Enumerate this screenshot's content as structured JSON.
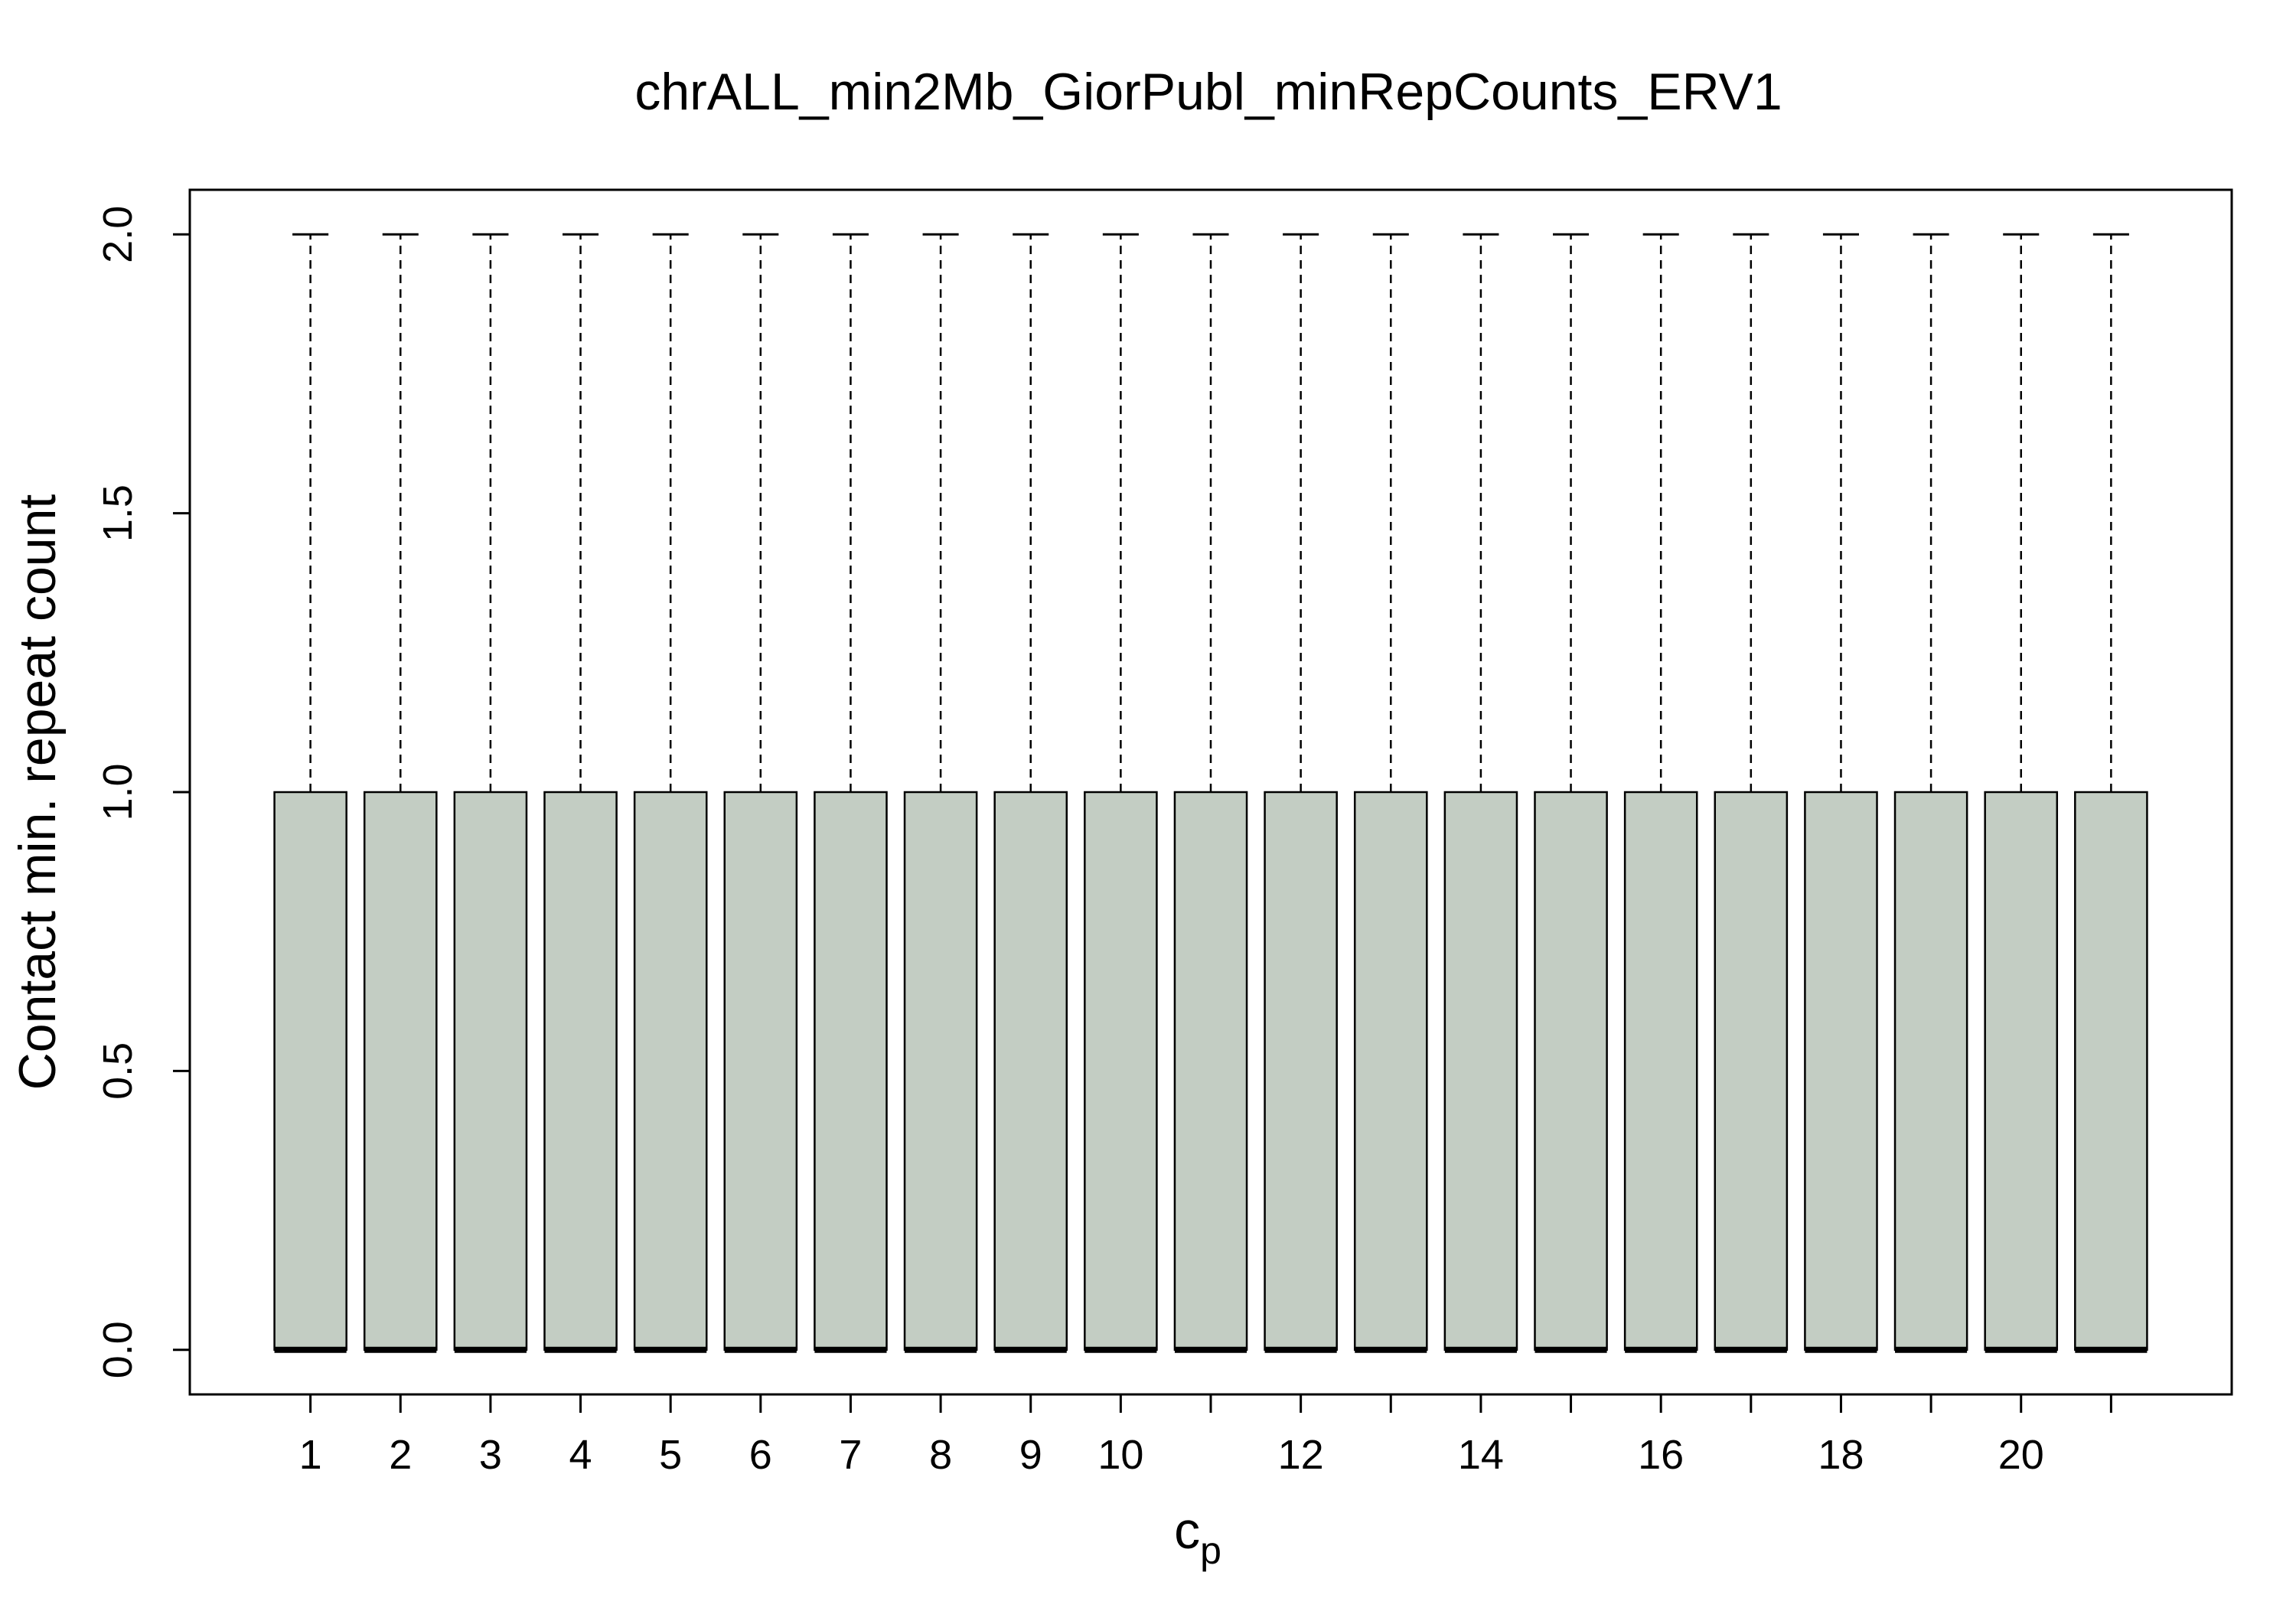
{
  "chart_data": {
    "type": "box",
    "title": "chrALL_min2Mb_GiorPubl_minRepCounts_ERV1",
    "xlabel": "c",
    "xlabel_subscript": "p",
    "ylabel": "Contact min. repeat count",
    "categories": [
      1,
      2,
      3,
      4,
      5,
      6,
      7,
      8,
      9,
      10,
      11,
      12,
      13,
      14,
      15,
      16,
      17,
      18,
      19,
      20,
      21
    ],
    "x_tick_labels_shown": [
      "1",
      "2",
      "3",
      "4",
      "5",
      "6",
      "7",
      "8",
      "9",
      "10",
      "",
      "12",
      "",
      "14",
      "",
      "16",
      "",
      "18",
      "",
      "20",
      ""
    ],
    "y_ticks": [
      0.0,
      0.5,
      1.0,
      1.5,
      2.0
    ],
    "y_tick_labels": [
      "0.0",
      "0.5",
      "1.0",
      "1.5",
      "2.0"
    ],
    "ylim": [
      -0.08,
      2.08
    ],
    "boxes": [
      {
        "x": 1,
        "whisker_low": 0,
        "q1": 0,
        "median": 0,
        "q3": 1,
        "whisker_high": 2
      },
      {
        "x": 2,
        "whisker_low": 0,
        "q1": 0,
        "median": 0,
        "q3": 1,
        "whisker_high": 2
      },
      {
        "x": 3,
        "whisker_low": 0,
        "q1": 0,
        "median": 0,
        "q3": 1,
        "whisker_high": 2
      },
      {
        "x": 4,
        "whisker_low": 0,
        "q1": 0,
        "median": 0,
        "q3": 1,
        "whisker_high": 2
      },
      {
        "x": 5,
        "whisker_low": 0,
        "q1": 0,
        "median": 0,
        "q3": 1,
        "whisker_high": 2
      },
      {
        "x": 6,
        "whisker_low": 0,
        "q1": 0,
        "median": 0,
        "q3": 1,
        "whisker_high": 2
      },
      {
        "x": 7,
        "whisker_low": 0,
        "q1": 0,
        "median": 0,
        "q3": 1,
        "whisker_high": 2
      },
      {
        "x": 8,
        "whisker_low": 0,
        "q1": 0,
        "median": 0,
        "q3": 1,
        "whisker_high": 2
      },
      {
        "x": 9,
        "whisker_low": 0,
        "q1": 0,
        "median": 0,
        "q3": 1,
        "whisker_high": 2
      },
      {
        "x": 10,
        "whisker_low": 0,
        "q1": 0,
        "median": 0,
        "q3": 1,
        "whisker_high": 2
      },
      {
        "x": 11,
        "whisker_low": 0,
        "q1": 0,
        "median": 0,
        "q3": 1,
        "whisker_high": 2
      },
      {
        "x": 12,
        "whisker_low": 0,
        "q1": 0,
        "median": 0,
        "q3": 1,
        "whisker_high": 2
      },
      {
        "x": 13,
        "whisker_low": 0,
        "q1": 0,
        "median": 0,
        "q3": 1,
        "whisker_high": 2
      },
      {
        "x": 14,
        "whisker_low": 0,
        "q1": 0,
        "median": 0,
        "q3": 1,
        "whisker_high": 2
      },
      {
        "x": 15,
        "whisker_low": 0,
        "q1": 0,
        "median": 0,
        "q3": 1,
        "whisker_high": 2
      },
      {
        "x": 16,
        "whisker_low": 0,
        "q1": 0,
        "median": 0,
        "q3": 1,
        "whisker_high": 2
      },
      {
        "x": 17,
        "whisker_low": 0,
        "q1": 0,
        "median": 0,
        "q3": 1,
        "whisker_high": 2
      },
      {
        "x": 18,
        "whisker_low": 0,
        "q1": 0,
        "median": 0,
        "q3": 1,
        "whisker_high": 2
      },
      {
        "x": 19,
        "whisker_low": 0,
        "q1": 0,
        "median": 0,
        "q3": 1,
        "whisker_high": 2
      },
      {
        "x": 20,
        "whisker_low": 0,
        "q1": 0,
        "median": 0,
        "q3": 1,
        "whisker_high": 2
      },
      {
        "x": 21,
        "whisker_low": 0,
        "q1": 0,
        "median": 0,
        "q3": 1,
        "whisker_high": 2
      }
    ],
    "box_color": "#c3cdc3",
    "line_color": "#000000",
    "grid": false,
    "legend": "none"
  }
}
